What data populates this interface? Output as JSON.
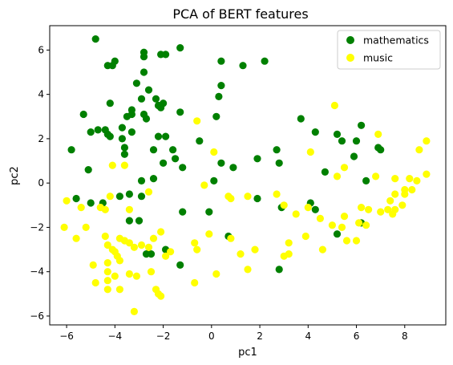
{
  "chart_data": {
    "type": "scatter",
    "title": "PCA of BERT features",
    "xlabel": "pc1",
    "ylabel": "pc2",
    "xlim": [
      -6.7,
      9.7
    ],
    "ylim": [
      -6.4,
      7.1
    ],
    "xticks": [
      -6,
      -4,
      -2,
      0,
      2,
      4,
      6,
      8
    ],
    "yticks": [
      -6,
      -4,
      -2,
      0,
      2,
      4,
      6
    ],
    "grid": false,
    "legend_position": "top-right",
    "series": [
      {
        "name": "mathematics",
        "color": "#008000",
        "points": [
          [
            -4.8,
            6.5
          ],
          [
            -4.3,
            5.3
          ],
          [
            -4.0,
            5.5
          ],
          [
            -4.1,
            5.3
          ],
          [
            -2.8,
            5.9
          ],
          [
            -2.8,
            5.7
          ],
          [
            -2.1,
            5.8
          ],
          [
            -1.9,
            5.8
          ],
          [
            -1.3,
            6.1
          ],
          [
            -2.8,
            5.0
          ],
          [
            0.4,
            5.5
          ],
          [
            1.3,
            5.3
          ],
          [
            2.2,
            5.5
          ],
          [
            -3.1,
            4.5
          ],
          [
            -2.6,
            4.2
          ],
          [
            0.4,
            4.4
          ],
          [
            0.3,
            3.9
          ],
          [
            -4.2,
            3.6
          ],
          [
            -3.3,
            3.3
          ],
          [
            -2.9,
            3.8
          ],
          [
            -2.3,
            3.8
          ],
          [
            -2.2,
            3.5
          ],
          [
            -2.0,
            3.6
          ],
          [
            -5.3,
            3.1
          ],
          [
            -3.5,
            3.0
          ],
          [
            -3.3,
            3.1
          ],
          [
            -2.8,
            3.1
          ],
          [
            -2.7,
            2.9
          ],
          [
            -2.1,
            3.4
          ],
          [
            -1.3,
            3.2
          ],
          [
            0.2,
            3.0
          ],
          [
            -5.0,
            2.3
          ],
          [
            -4.7,
            2.4
          ],
          [
            -4.4,
            2.4
          ],
          [
            -4.3,
            2.2
          ],
          [
            -4.2,
            2.1
          ],
          [
            -3.7,
            2.5
          ],
          [
            -3.7,
            2.0
          ],
          [
            -3.3,
            2.3
          ],
          [
            -3.6,
            1.6
          ],
          [
            -2.2,
            2.1
          ],
          [
            -1.9,
            2.1
          ],
          [
            -5.8,
            1.5
          ],
          [
            -3.6,
            1.3
          ],
          [
            -2.4,
            1.5
          ],
          [
            -1.6,
            1.5
          ],
          [
            -1.5,
            1.1
          ],
          [
            -0.5,
            1.9
          ],
          [
            -2.0,
            0.9
          ],
          [
            -5.1,
            0.6
          ],
          [
            -2.9,
            0.1
          ],
          [
            -2.4,
            0.2
          ],
          [
            -1.2,
            0.7
          ],
          [
            0.1,
            0.1
          ],
          [
            0.4,
            0.9
          ],
          [
            0.9,
            0.7
          ],
          [
            1.9,
            1.1
          ],
          [
            2.7,
            1.5
          ],
          [
            2.8,
            0.9
          ],
          [
            3.7,
            2.9
          ],
          [
            4.3,
            2.3
          ],
          [
            5.2,
            2.2
          ],
          [
            5.4,
            1.9
          ],
          [
            6.2,
            2.6
          ],
          [
            6.0,
            1.9
          ],
          [
            5.9,
            1.2
          ],
          [
            6.9,
            1.6
          ],
          [
            7.0,
            1.5
          ],
          [
            4.7,
            0.5
          ],
          [
            6.4,
            0.1
          ],
          [
            -5.6,
            -0.7
          ],
          [
            -5.0,
            -0.9
          ],
          [
            -4.5,
            -0.9
          ],
          [
            -3.8,
            -0.6
          ],
          [
            -3.4,
            -0.5
          ],
          [
            -2.9,
            -0.6
          ],
          [
            -3.4,
            -1.7
          ],
          [
            -3.0,
            -1.7
          ],
          [
            -1.2,
            -1.3
          ],
          [
            -0.1,
            -1.3
          ],
          [
            1.9,
            -0.7
          ],
          [
            2.9,
            -1.1
          ],
          [
            4.1,
            -0.9
          ],
          [
            4.3,
            -1.2
          ],
          [
            6.2,
            -1.8
          ],
          [
            0.7,
            -2.4
          ],
          [
            5.2,
            -2.3
          ],
          [
            -2.7,
            -3.2
          ],
          [
            -2.5,
            -3.2
          ],
          [
            -1.9,
            -3.0
          ],
          [
            -1.3,
            -3.7
          ],
          [
            2.8,
            -3.9
          ]
        ]
      },
      {
        "name": "music",
        "color": "#ffff00",
        "points": [
          [
            5.1,
            3.5
          ],
          [
            4.1,
            1.4
          ],
          [
            6.9,
            2.2
          ],
          [
            0.1,
            1.4
          ],
          [
            -0.6,
            2.8
          ],
          [
            5.2,
            0.3
          ],
          [
            5.5,
            0.7
          ],
          [
            6.8,
            0.3
          ],
          [
            7.6,
            0.2
          ],
          [
            8.2,
            0.2
          ],
          [
            8.6,
            1.5
          ],
          [
            8.9,
            1.9
          ],
          [
            8.0,
            -0.3
          ],
          [
            8.0,
            -0.5
          ],
          [
            8.3,
            -0.3
          ],
          [
            8.5,
            0.1
          ],
          [
            7.6,
            -0.5
          ],
          [
            7.4,
            -0.8
          ],
          [
            7.9,
            -1.0
          ],
          [
            7.6,
            -1.2
          ],
          [
            7.5,
            -1.4
          ],
          [
            7.3,
            -1.2
          ],
          [
            7.0,
            -1.3
          ],
          [
            8.9,
            0.4
          ],
          [
            -6.0,
            -0.8
          ],
          [
            -5.4,
            -1.1
          ],
          [
            -4.6,
            -1.1
          ],
          [
            -4.4,
            -1.2
          ],
          [
            -4.2,
            -0.6
          ],
          [
            -4.1,
            0.8
          ],
          [
            -3.6,
            0.8
          ],
          [
            -3.4,
            -1.2
          ],
          [
            -2.6,
            -0.4
          ],
          [
            -0.3,
            -0.1
          ],
          [
            0.7,
            -0.6
          ],
          [
            0.8,
            -0.7
          ],
          [
            1.5,
            -0.6
          ],
          [
            2.7,
            -0.5
          ],
          [
            3.0,
            -1.0
          ],
          [
            3.5,
            -1.4
          ],
          [
            4.0,
            -1.1
          ],
          [
            4.5,
            -1.6
          ],
          [
            5.5,
            -1.5
          ],
          [
            6.2,
            -1.1
          ],
          [
            6.5,
            -1.2
          ],
          [
            6.1,
            -1.8
          ],
          [
            6.4,
            -1.9
          ],
          [
            -6.1,
            -2.0
          ],
          [
            -5.2,
            -2.0
          ],
          [
            -5.6,
            -2.5
          ],
          [
            -4.4,
            -2.4
          ],
          [
            -4.3,
            -2.8
          ],
          [
            -4.1,
            -3.0
          ],
          [
            -3.8,
            -2.5
          ],
          [
            -3.6,
            -2.6
          ],
          [
            -3.4,
            -2.7
          ],
          [
            -3.2,
            -2.9
          ],
          [
            -2.9,
            -2.8
          ],
          [
            -2.6,
            -2.9
          ],
          [
            -2.4,
            -2.5
          ],
          [
            -2.1,
            -2.2
          ],
          [
            -1.7,
            -3.1
          ],
          [
            -1.9,
            -3.3
          ],
          [
            -0.7,
            -2.7
          ],
          [
            -0.6,
            -3.0
          ],
          [
            -0.1,
            -2.3
          ],
          [
            -0.7,
            -4.5
          ],
          [
            0.2,
            -4.1
          ],
          [
            0.8,
            -2.5
          ],
          [
            1.2,
            -3.2
          ],
          [
            1.5,
            -3.9
          ],
          [
            1.8,
            -3.0
          ],
          [
            3.2,
            -2.7
          ],
          [
            3.2,
            -3.2
          ],
          [
            3.0,
            -3.3
          ],
          [
            3.9,
            -2.4
          ],
          [
            4.6,
            -3.0
          ],
          [
            5.4,
            -2.0
          ],
          [
            5.6,
            -2.6
          ],
          [
            6.0,
            -2.6
          ],
          [
            5.0,
            -1.9
          ],
          [
            -4.0,
            -3.1
          ],
          [
            -3.9,
            -3.3
          ],
          [
            -3.8,
            -3.5
          ],
          [
            -4.3,
            -3.6
          ],
          [
            -4.9,
            -3.7
          ],
          [
            -4.3,
            -4.0
          ],
          [
            -4.0,
            -4.2
          ],
          [
            -3.4,
            -4.1
          ],
          [
            -3.1,
            -4.2
          ],
          [
            -2.5,
            -4.0
          ],
          [
            -4.8,
            -4.5
          ],
          [
            -4.3,
            -4.4
          ],
          [
            -4.3,
            -4.8
          ],
          [
            -3.8,
            -4.8
          ],
          [
            -2.3,
            -4.8
          ],
          [
            -2.2,
            -5.0
          ],
          [
            -3.2,
            -5.8
          ],
          [
            -2.1,
            -5.1
          ]
        ]
      }
    ]
  }
}
